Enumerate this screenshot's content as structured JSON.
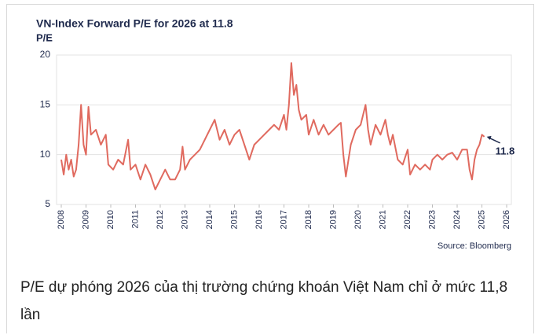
{
  "chart_data": {
    "type": "line",
    "title": "VN-Index Forward P/E for 2026 at 11.8",
    "y_label": "P/E",
    "source": "Source: Bloomberg",
    "annotation": "11.8",
    "xlim": [
      2008,
      2026
    ],
    "xticks": [
      2008,
      2009,
      2010,
      2011,
      2012,
      2013,
      2014,
      2015,
      2016,
      2017,
      2018,
      2019,
      2020,
      2021,
      2022,
      2023,
      2024,
      2025,
      2026
    ],
    "ylim": [
      5,
      20
    ],
    "yticks": [
      5,
      10,
      15,
      20
    ],
    "grid": true,
    "series": [
      {
        "color": "#e06a5f",
        "x": [
          2008.0,
          2008.1,
          2008.2,
          2008.3,
          2008.4,
          2008.5,
          2008.6,
          2008.7,
          2008.8,
          2008.9,
          2009.0,
          2009.1,
          2009.2,
          2009.4,
          2009.6,
          2009.8,
          2009.9,
          2010.1,
          2010.3,
          2010.5,
          2010.7,
          2010.8,
          2011.0,
          2011.2,
          2011.4,
          2011.6,
          2011.8,
          2012.0,
          2012.2,
          2012.4,
          2012.6,
          2012.8,
          2012.9,
          2013.0,
          2013.2,
          2013.4,
          2013.6,
          2013.8,
          2014.0,
          2014.2,
          2014.4,
          2014.6,
          2014.8,
          2015.0,
          2015.2,
          2015.4,
          2015.6,
          2015.8,
          2016.0,
          2016.2,
          2016.4,
          2016.6,
          2016.8,
          2017.0,
          2017.1,
          2017.2,
          2017.3,
          2017.4,
          2017.5,
          2017.6,
          2017.7,
          2017.9,
          2018.0,
          2018.2,
          2018.4,
          2018.6,
          2018.8,
          2019.0,
          2019.2,
          2019.3,
          2019.4,
          2019.5,
          2019.7,
          2019.9,
          2020.1,
          2020.3,
          2020.4,
          2020.5,
          2020.7,
          2020.9,
          2021.1,
          2021.2,
          2021.3,
          2021.4,
          2021.6,
          2021.8,
          2022.0,
          2022.1,
          2022.3,
          2022.5,
          2022.7,
          2022.9,
          2023.0,
          2023.2,
          2023.4,
          2023.6,
          2023.8,
          2024.0,
          2024.2,
          2024.4,
          2024.5,
          2024.6,
          2024.7,
          2024.8,
          2024.9,
          2025.0,
          2025.1
        ],
        "values": [
          9.5,
          8,
          10,
          8.5,
          9.5,
          7.8,
          8.5,
          11,
          15,
          11,
          10,
          14.8,
          12,
          12.5,
          11,
          12,
          9,
          8.5,
          9.5,
          9,
          11.5,
          8.5,
          9,
          7.5,
          9,
          8,
          6.5,
          7.5,
          8.5,
          7.5,
          7.5,
          8.5,
          10.8,
          8.5,
          9.5,
          10,
          10.5,
          11.5,
          12.5,
          13.5,
          11.5,
          12.5,
          11,
          12,
          12.5,
          11,
          9.5,
          11,
          11.5,
          12,
          12.5,
          13,
          12.5,
          14,
          12.5,
          15,
          19.2,
          16,
          17,
          14.5,
          13.5,
          14,
          12,
          13.5,
          12,
          13,
          12,
          12.5,
          13,
          13.2,
          10,
          7.8,
          11,
          12.5,
          13,
          15,
          12.5,
          11,
          13,
          12,
          13.5,
          12,
          11,
          12,
          9.5,
          9,
          10.5,
          8,
          9,
          8.5,
          9,
          8.5,
          9.5,
          10,
          9.5,
          10,
          10.2,
          9.5,
          10.5,
          10.5,
          8.5,
          7.5,
          9.5,
          10.5,
          11,
          12,
          11.8
        ]
      }
    ]
  },
  "caption": "P/E dự phóng 2026 của thị trường chứng khoán Việt Nam chỉ ở mức 11,8 lần"
}
